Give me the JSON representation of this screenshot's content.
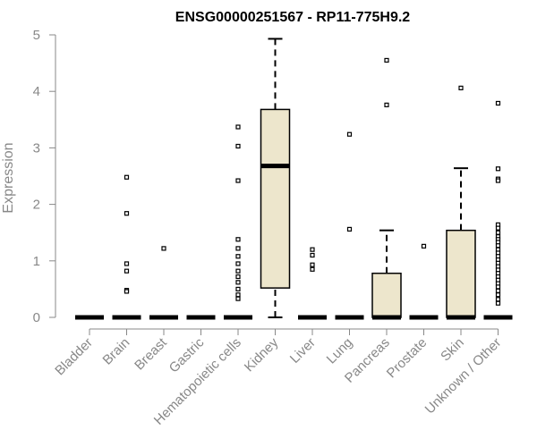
{
  "chart_data": {
    "type": "boxplot",
    "title": "ENSG00000251567 - RP11-775H9.2",
    "xlabel": "",
    "ylabel": "Expression",
    "ylim": [
      0,
      5
    ],
    "yticks": [
      0,
      1,
      2,
      3,
      4,
      5
    ],
    "grid": false,
    "box_color": "#ede6cc",
    "categories": [
      "Bladder",
      "Brain",
      "Breast",
      "Gastric",
      "Hematopoietic cells",
      "Kidney",
      "Liver",
      "Lung",
      "Pancreas",
      "Prostate",
      "Skin",
      "Unknown / Other"
    ],
    "boxes": [
      {
        "category": "Bladder",
        "min": 0,
        "q1": 0,
        "median": 0,
        "q3": 0,
        "max": 0,
        "outliers": []
      },
      {
        "category": "Brain",
        "min": 0,
        "q1": 0,
        "median": 0,
        "q3": 0,
        "max": 0,
        "outliers": [
          2.48,
          1.84,
          0.95,
          0.82,
          0.48,
          0.46
        ]
      },
      {
        "category": "Breast",
        "min": 0,
        "q1": 0,
        "median": 0,
        "q3": 0,
        "max": 0,
        "outliers": [
          1.22
        ]
      },
      {
        "category": "Gastric",
        "min": 0,
        "q1": 0,
        "median": 0,
        "q3": 0,
        "max": 0,
        "outliers": []
      },
      {
        "category": "Hematopoietic cells",
        "min": 0,
        "q1": 0,
        "median": 0,
        "q3": 0,
        "max": 0,
        "outliers": [
          3.37,
          3.03,
          2.42,
          1.38,
          1.22,
          1.08,
          0.95,
          0.82,
          0.72,
          0.62,
          0.5,
          0.4,
          0.33
        ]
      },
      {
        "category": "Kidney",
        "min": 0,
        "q1": 0.52,
        "median": 2.68,
        "q3": 3.68,
        "max": 4.93,
        "outliers": []
      },
      {
        "category": "Liver",
        "min": 0,
        "q1": 0,
        "median": 0,
        "q3": 0,
        "max": 0,
        "outliers": [
          1.2,
          1.1,
          0.93,
          0.85
        ]
      },
      {
        "category": "Lung",
        "min": 0,
        "q1": 0,
        "median": 0,
        "q3": 0,
        "max": 0,
        "outliers": [
          3.24,
          1.56
        ]
      },
      {
        "category": "Pancreas",
        "min": 0,
        "q1": 0,
        "median": 0,
        "q3": 0.78,
        "max": 1.54,
        "outliers": [
          4.55,
          3.76
        ]
      },
      {
        "category": "Prostate",
        "min": 0,
        "q1": 0,
        "median": 0,
        "q3": 0,
        "max": 0,
        "outliers": [
          1.26
        ]
      },
      {
        "category": "Skin",
        "min": 0,
        "q1": 0,
        "median": 0,
        "q3": 1.54,
        "max": 2.64,
        "outliers": [
          4.06
        ]
      },
      {
        "category": "Unknown / Other",
        "min": 0,
        "q1": 0,
        "median": 0,
        "q3": 0,
        "max": 0,
        "outliers": [
          3.79,
          2.63,
          2.45,
          2.42,
          1.64,
          1.58,
          1.5,
          1.43,
          1.38,
          1.33,
          1.27,
          1.2,
          1.14,
          1.08,
          1.02,
          0.96,
          0.9,
          0.84,
          0.78,
          0.72,
          0.66,
          0.6,
          0.54,
          0.47,
          0.4,
          0.32,
          0.25
        ]
      }
    ]
  }
}
